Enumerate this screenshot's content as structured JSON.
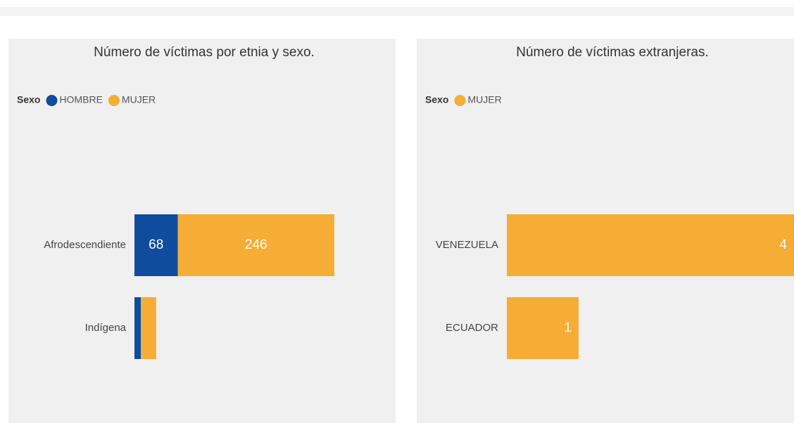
{
  "chart_data": [
    {
      "type": "bar",
      "stacked": true,
      "orientation": "horizontal",
      "title": "Número de víctimas por etnia y sexo.",
      "legend_title": "Sexo",
      "categories": [
        "Afrodescendiente",
        "Indígena"
      ],
      "series": [
        {
          "name": "HOMBRE",
          "color": "#0f4c9e",
          "values": [
            68,
            10
          ]
        },
        {
          "name": "MUJER",
          "color": "#f5ad36",
          "values": [
            246,
            24
          ]
        }
      ],
      "xlim": [
        0,
        314
      ]
    },
    {
      "type": "bar",
      "stacked": true,
      "orientation": "horizontal",
      "title": "Número de víctimas extranjeras.",
      "legend_title": "Sexo",
      "categories": [
        "VENEZUELA",
        "ECUADOR"
      ],
      "series": [
        {
          "name": "MUJER",
          "color": "#f5ad36",
          "values": [
            4,
            1
          ]
        }
      ],
      "xlim": [
        0,
        4
      ]
    }
  ]
}
